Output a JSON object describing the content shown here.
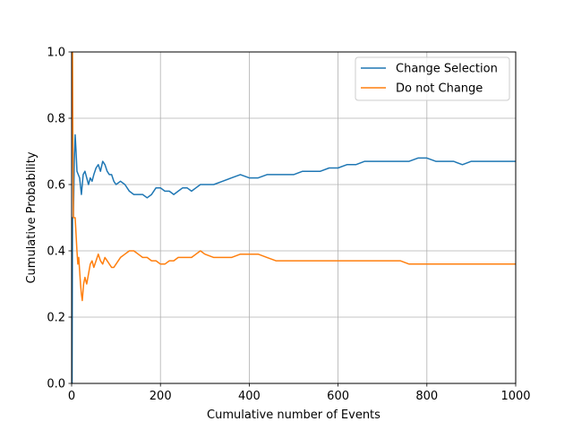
{
  "chart_data": {
    "type": "line",
    "title": "",
    "xlabel": "Cumulative number of Events",
    "ylabel": "Cumulative Probability",
    "xlim": [
      0,
      1000
    ],
    "ylim": [
      0.0,
      1.0
    ],
    "grid": true,
    "legend_position": "top-right",
    "x_ticks": [
      "0",
      "200",
      "400",
      "600",
      "800",
      "1000"
    ],
    "y_ticks": [
      "0.0",
      "0.2",
      "0.4",
      "0.6",
      "0.8",
      "1.0"
    ],
    "series": [
      {
        "name": "Change Selection",
        "color": "#1f77b4",
        "points": [
          [
            1,
            0.0
          ],
          [
            2,
            0.5
          ],
          [
            4,
            0.5
          ],
          [
            6,
            0.67
          ],
          [
            8,
            0.75
          ],
          [
            10,
            0.7
          ],
          [
            12,
            0.64
          ],
          [
            15,
            0.63
          ],
          [
            18,
            0.62
          ],
          [
            22,
            0.57
          ],
          [
            26,
            0.63
          ],
          [
            30,
            0.64
          ],
          [
            34,
            0.62
          ],
          [
            38,
            0.6
          ],
          [
            42,
            0.62
          ],
          [
            46,
            0.61
          ],
          [
            50,
            0.63
          ],
          [
            55,
            0.65
          ],
          [
            60,
            0.66
          ],
          [
            65,
            0.64
          ],
          [
            70,
            0.67
          ],
          [
            75,
            0.66
          ],
          [
            80,
            0.64
          ],
          [
            85,
            0.63
          ],
          [
            90,
            0.63
          ],
          [
            95,
            0.61
          ],
          [
            100,
            0.6
          ],
          [
            110,
            0.61
          ],
          [
            120,
            0.6
          ],
          [
            130,
            0.58
          ],
          [
            140,
            0.57
          ],
          [
            150,
            0.57
          ],
          [
            160,
            0.57
          ],
          [
            170,
            0.56
          ],
          [
            180,
            0.57
          ],
          [
            190,
            0.59
          ],
          [
            200,
            0.59
          ],
          [
            210,
            0.58
          ],
          [
            220,
            0.58
          ],
          [
            230,
            0.57
          ],
          [
            240,
            0.58
          ],
          [
            250,
            0.59
          ],
          [
            260,
            0.59
          ],
          [
            270,
            0.58
          ],
          [
            280,
            0.59
          ],
          [
            290,
            0.6
          ],
          [
            300,
            0.6
          ],
          [
            320,
            0.6
          ],
          [
            340,
            0.61
          ],
          [
            360,
            0.62
          ],
          [
            380,
            0.63
          ],
          [
            400,
            0.62
          ],
          [
            420,
            0.62
          ],
          [
            440,
            0.63
          ],
          [
            460,
            0.63
          ],
          [
            480,
            0.63
          ],
          [
            500,
            0.63
          ],
          [
            520,
            0.64
          ],
          [
            540,
            0.64
          ],
          [
            560,
            0.64
          ],
          [
            580,
            0.65
          ],
          [
            600,
            0.65
          ],
          [
            620,
            0.66
          ],
          [
            640,
            0.66
          ],
          [
            660,
            0.67
          ],
          [
            680,
            0.67
          ],
          [
            700,
            0.67
          ],
          [
            720,
            0.67
          ],
          [
            740,
            0.67
          ],
          [
            760,
            0.67
          ],
          [
            780,
            0.68
          ],
          [
            800,
            0.68
          ],
          [
            820,
            0.67
          ],
          [
            840,
            0.67
          ],
          [
            860,
            0.67
          ],
          [
            880,
            0.66
          ],
          [
            900,
            0.67
          ],
          [
            920,
            0.67
          ],
          [
            940,
            0.67
          ],
          [
            960,
            0.67
          ],
          [
            980,
            0.67
          ],
          [
            1000,
            0.67
          ]
        ]
      },
      {
        "name": "Do not Change",
        "color": "#ff7f0e",
        "points": [
          [
            1,
            1.0
          ],
          [
            2,
            1.0
          ],
          [
            3,
            0.67
          ],
          [
            4,
            0.5
          ],
          [
            6,
            0.5
          ],
          [
            8,
            0.5
          ],
          [
            10,
            0.45
          ],
          [
            12,
            0.4
          ],
          [
            14,
            0.36
          ],
          [
            16,
            0.38
          ],
          [
            18,
            0.34
          ],
          [
            20,
            0.3
          ],
          [
            22,
            0.27
          ],
          [
            24,
            0.25
          ],
          [
            27,
            0.3
          ],
          [
            30,
            0.32
          ],
          [
            34,
            0.3
          ],
          [
            38,
            0.33
          ],
          [
            42,
            0.36
          ],
          [
            46,
            0.37
          ],
          [
            50,
            0.35
          ],
          [
            55,
            0.37
          ],
          [
            60,
            0.39
          ],
          [
            65,
            0.37
          ],
          [
            70,
            0.36
          ],
          [
            75,
            0.38
          ],
          [
            80,
            0.37
          ],
          [
            85,
            0.36
          ],
          [
            90,
            0.35
          ],
          [
            95,
            0.35
          ],
          [
            100,
            0.36
          ],
          [
            110,
            0.38
          ],
          [
            120,
            0.39
          ],
          [
            130,
            0.4
          ],
          [
            140,
            0.4
          ],
          [
            150,
            0.39
          ],
          [
            160,
            0.38
          ],
          [
            170,
            0.38
          ],
          [
            180,
            0.37
          ],
          [
            190,
            0.37
          ],
          [
            200,
            0.36
          ],
          [
            210,
            0.36
          ],
          [
            220,
            0.37
          ],
          [
            230,
            0.37
          ],
          [
            240,
            0.38
          ],
          [
            250,
            0.38
          ],
          [
            260,
            0.38
          ],
          [
            270,
            0.38
          ],
          [
            280,
            0.39
          ],
          [
            290,
            0.4
          ],
          [
            300,
            0.39
          ],
          [
            320,
            0.38
          ],
          [
            340,
            0.38
          ],
          [
            360,
            0.38
          ],
          [
            380,
            0.39
          ],
          [
            400,
            0.39
          ],
          [
            420,
            0.39
          ],
          [
            440,
            0.38
          ],
          [
            460,
            0.37
          ],
          [
            480,
            0.37
          ],
          [
            500,
            0.37
          ],
          [
            520,
            0.37
          ],
          [
            540,
            0.37
          ],
          [
            560,
            0.37
          ],
          [
            580,
            0.37
          ],
          [
            600,
            0.37
          ],
          [
            620,
            0.37
          ],
          [
            640,
            0.37
          ],
          [
            660,
            0.37
          ],
          [
            680,
            0.37
          ],
          [
            700,
            0.37
          ],
          [
            720,
            0.37
          ],
          [
            740,
            0.37
          ],
          [
            760,
            0.36
          ],
          [
            780,
            0.36
          ],
          [
            800,
            0.36
          ],
          [
            820,
            0.36
          ],
          [
            840,
            0.36
          ],
          [
            860,
            0.36
          ],
          [
            880,
            0.36
          ],
          [
            900,
            0.36
          ],
          [
            920,
            0.36
          ],
          [
            940,
            0.36
          ],
          [
            960,
            0.36
          ],
          [
            980,
            0.36
          ],
          [
            1000,
            0.36
          ]
        ]
      }
    ]
  }
}
